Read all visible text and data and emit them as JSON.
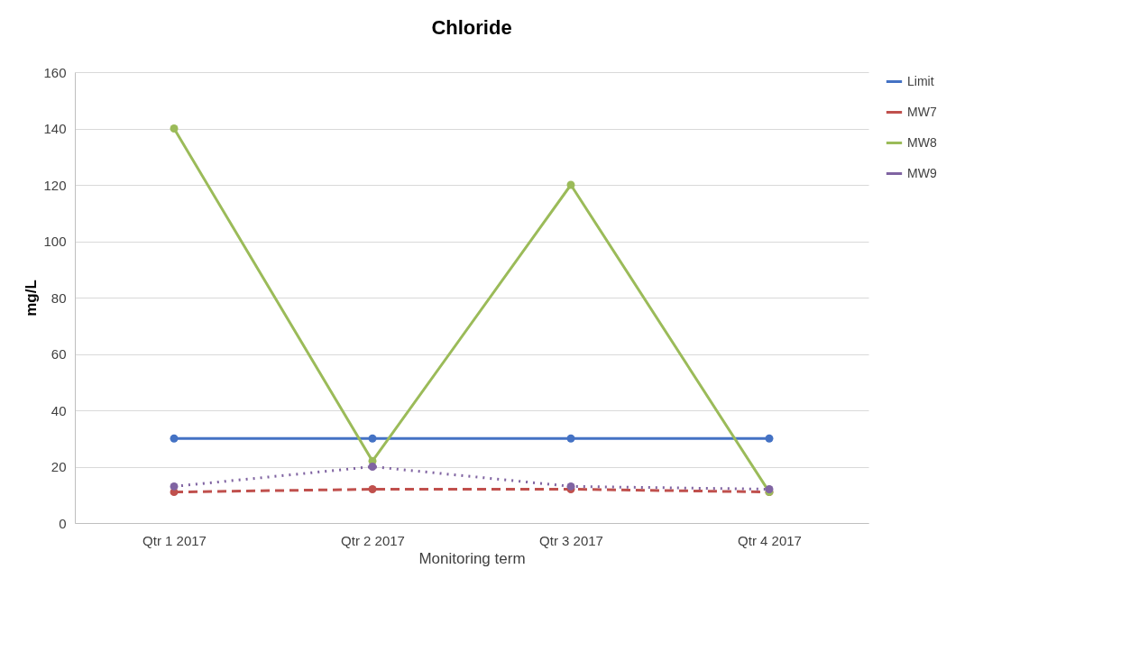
{
  "chart_data": {
    "type": "line",
    "title": "Chloride",
    "xlabel": "Monitoring term",
    "ylabel": "mg/L",
    "categories": [
      "Qtr 1 2017",
      "Qtr 2 2017",
      "Qtr 3 2017",
      "Qtr 4 2017"
    ],
    "series": [
      {
        "name": "Limit",
        "color": "#4472c4",
        "line_style": "solid",
        "values": [
          30,
          30,
          30,
          30
        ]
      },
      {
        "name": "MW7",
        "color": "#c0504d",
        "line_style": "dashed",
        "values": [
          11,
          12,
          12,
          11
        ]
      },
      {
        "name": "MW8",
        "color": "#9bbb59",
        "line_style": "solid",
        "values": [
          140,
          22,
          120,
          11
        ]
      },
      {
        "name": "MW9",
        "color": "#8064a2",
        "line_style": "dotted",
        "values": [
          13,
          20,
          13,
          12
        ]
      }
    ],
    "ylim": [
      0,
      160
    ],
    "yticks": [
      0,
      20,
      40,
      60,
      80,
      100,
      120,
      140,
      160
    ],
    "grid": "y",
    "legend": "right",
    "marker": "circle"
  }
}
